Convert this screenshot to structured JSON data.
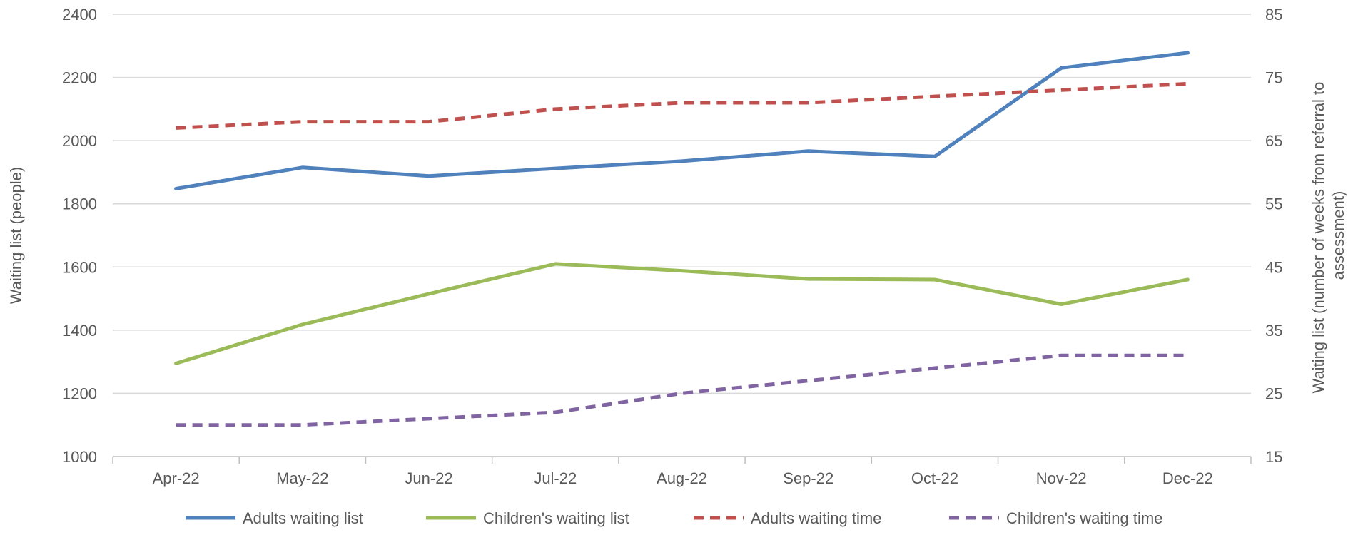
{
  "chart_data": {
    "type": "line",
    "categories": [
      "Apr-22",
      "May-22",
      "Jun-22",
      "Jul-22",
      "Aug-22",
      "Sep-22",
      "Oct-22",
      "Nov-22",
      "Dec-22"
    ],
    "ylabel": "Waiting list (people)",
    "y2label_lines": [
      "Waiting list (number of weeks from referral to",
      "assessment)"
    ],
    "ylim": [
      1000,
      2400
    ],
    "yticks": [
      1000,
      1200,
      1400,
      1600,
      1800,
      2000,
      2200,
      2400
    ],
    "y2lim": [
      15,
      85
    ],
    "y2ticks": [
      15,
      25,
      35,
      45,
      55,
      65,
      75,
      85
    ],
    "grid": true,
    "legend_position": "bottom",
    "series": [
      {
        "name": "Adults waiting list",
        "axis": "left",
        "style": "solid",
        "color": "#4f81bd",
        "values": [
          1848,
          1915,
          1888,
          1912,
          1935,
          1967,
          1950,
          2230,
          2278
        ]
      },
      {
        "name": "Children's waiting list",
        "axis": "left",
        "style": "solid",
        "color": "#9bbb59",
        "values": [
          1295,
          1418,
          1515,
          1610,
          1588,
          1562,
          1560,
          1482,
          1560
        ]
      },
      {
        "name": "Adults waiting time",
        "axis": "right",
        "style": "dashed",
        "color": "#c0504d",
        "values": [
          67,
          68,
          68,
          70,
          71,
          71,
          72,
          73,
          74
        ]
      },
      {
        "name": "Children's waiting time",
        "axis": "right",
        "style": "dashed",
        "color": "#8064a2",
        "values": [
          20,
          20,
          21,
          22,
          25,
          27,
          29,
          31,
          31
        ]
      }
    ]
  }
}
